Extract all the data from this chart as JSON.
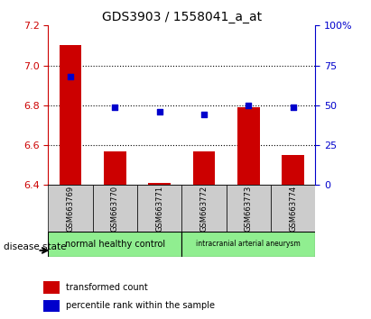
{
  "title": "GDS3903 / 1558041_a_at",
  "samples": [
    "GSM663769",
    "GSM663770",
    "GSM663771",
    "GSM663772",
    "GSM663773",
    "GSM663774"
  ],
  "transformed_count": [
    7.1,
    6.57,
    6.41,
    6.57,
    6.79,
    6.55
  ],
  "percentile_rank": [
    68,
    49,
    46,
    44,
    50,
    49
  ],
  "ylim_left": [
    6.4,
    7.2
  ],
  "ylim_right": [
    0,
    100
  ],
  "yticks_left": [
    6.4,
    6.6,
    6.8,
    7.0,
    7.2
  ],
  "yticks_right": [
    0,
    25,
    50,
    75,
    100
  ],
  "ytick_labels_right": [
    "0",
    "25",
    "50",
    "75",
    "100%"
  ],
  "bar_color": "#cc0000",
  "dot_color": "#0000cc",
  "bar_bottom": 6.4,
  "group_colors": [
    "#90ee90",
    "#90ee90"
  ],
  "group_labels": [
    "normal healthy control",
    "intracranial arterial aneurysm"
  ],
  "group_ranges": [
    [
      0,
      3
    ],
    [
      3,
      6
    ]
  ],
  "disease_state_label": "disease state",
  "legend_bar_label": "transformed count",
  "legend_dot_label": "percentile rank within the sample",
  "left_axis_color": "#cc0000",
  "right_axis_color": "#0000cc",
  "grid_color": "#000000",
  "plot_bg_color": "#ffffff",
  "xticklabel_bg": "#cccccc"
}
